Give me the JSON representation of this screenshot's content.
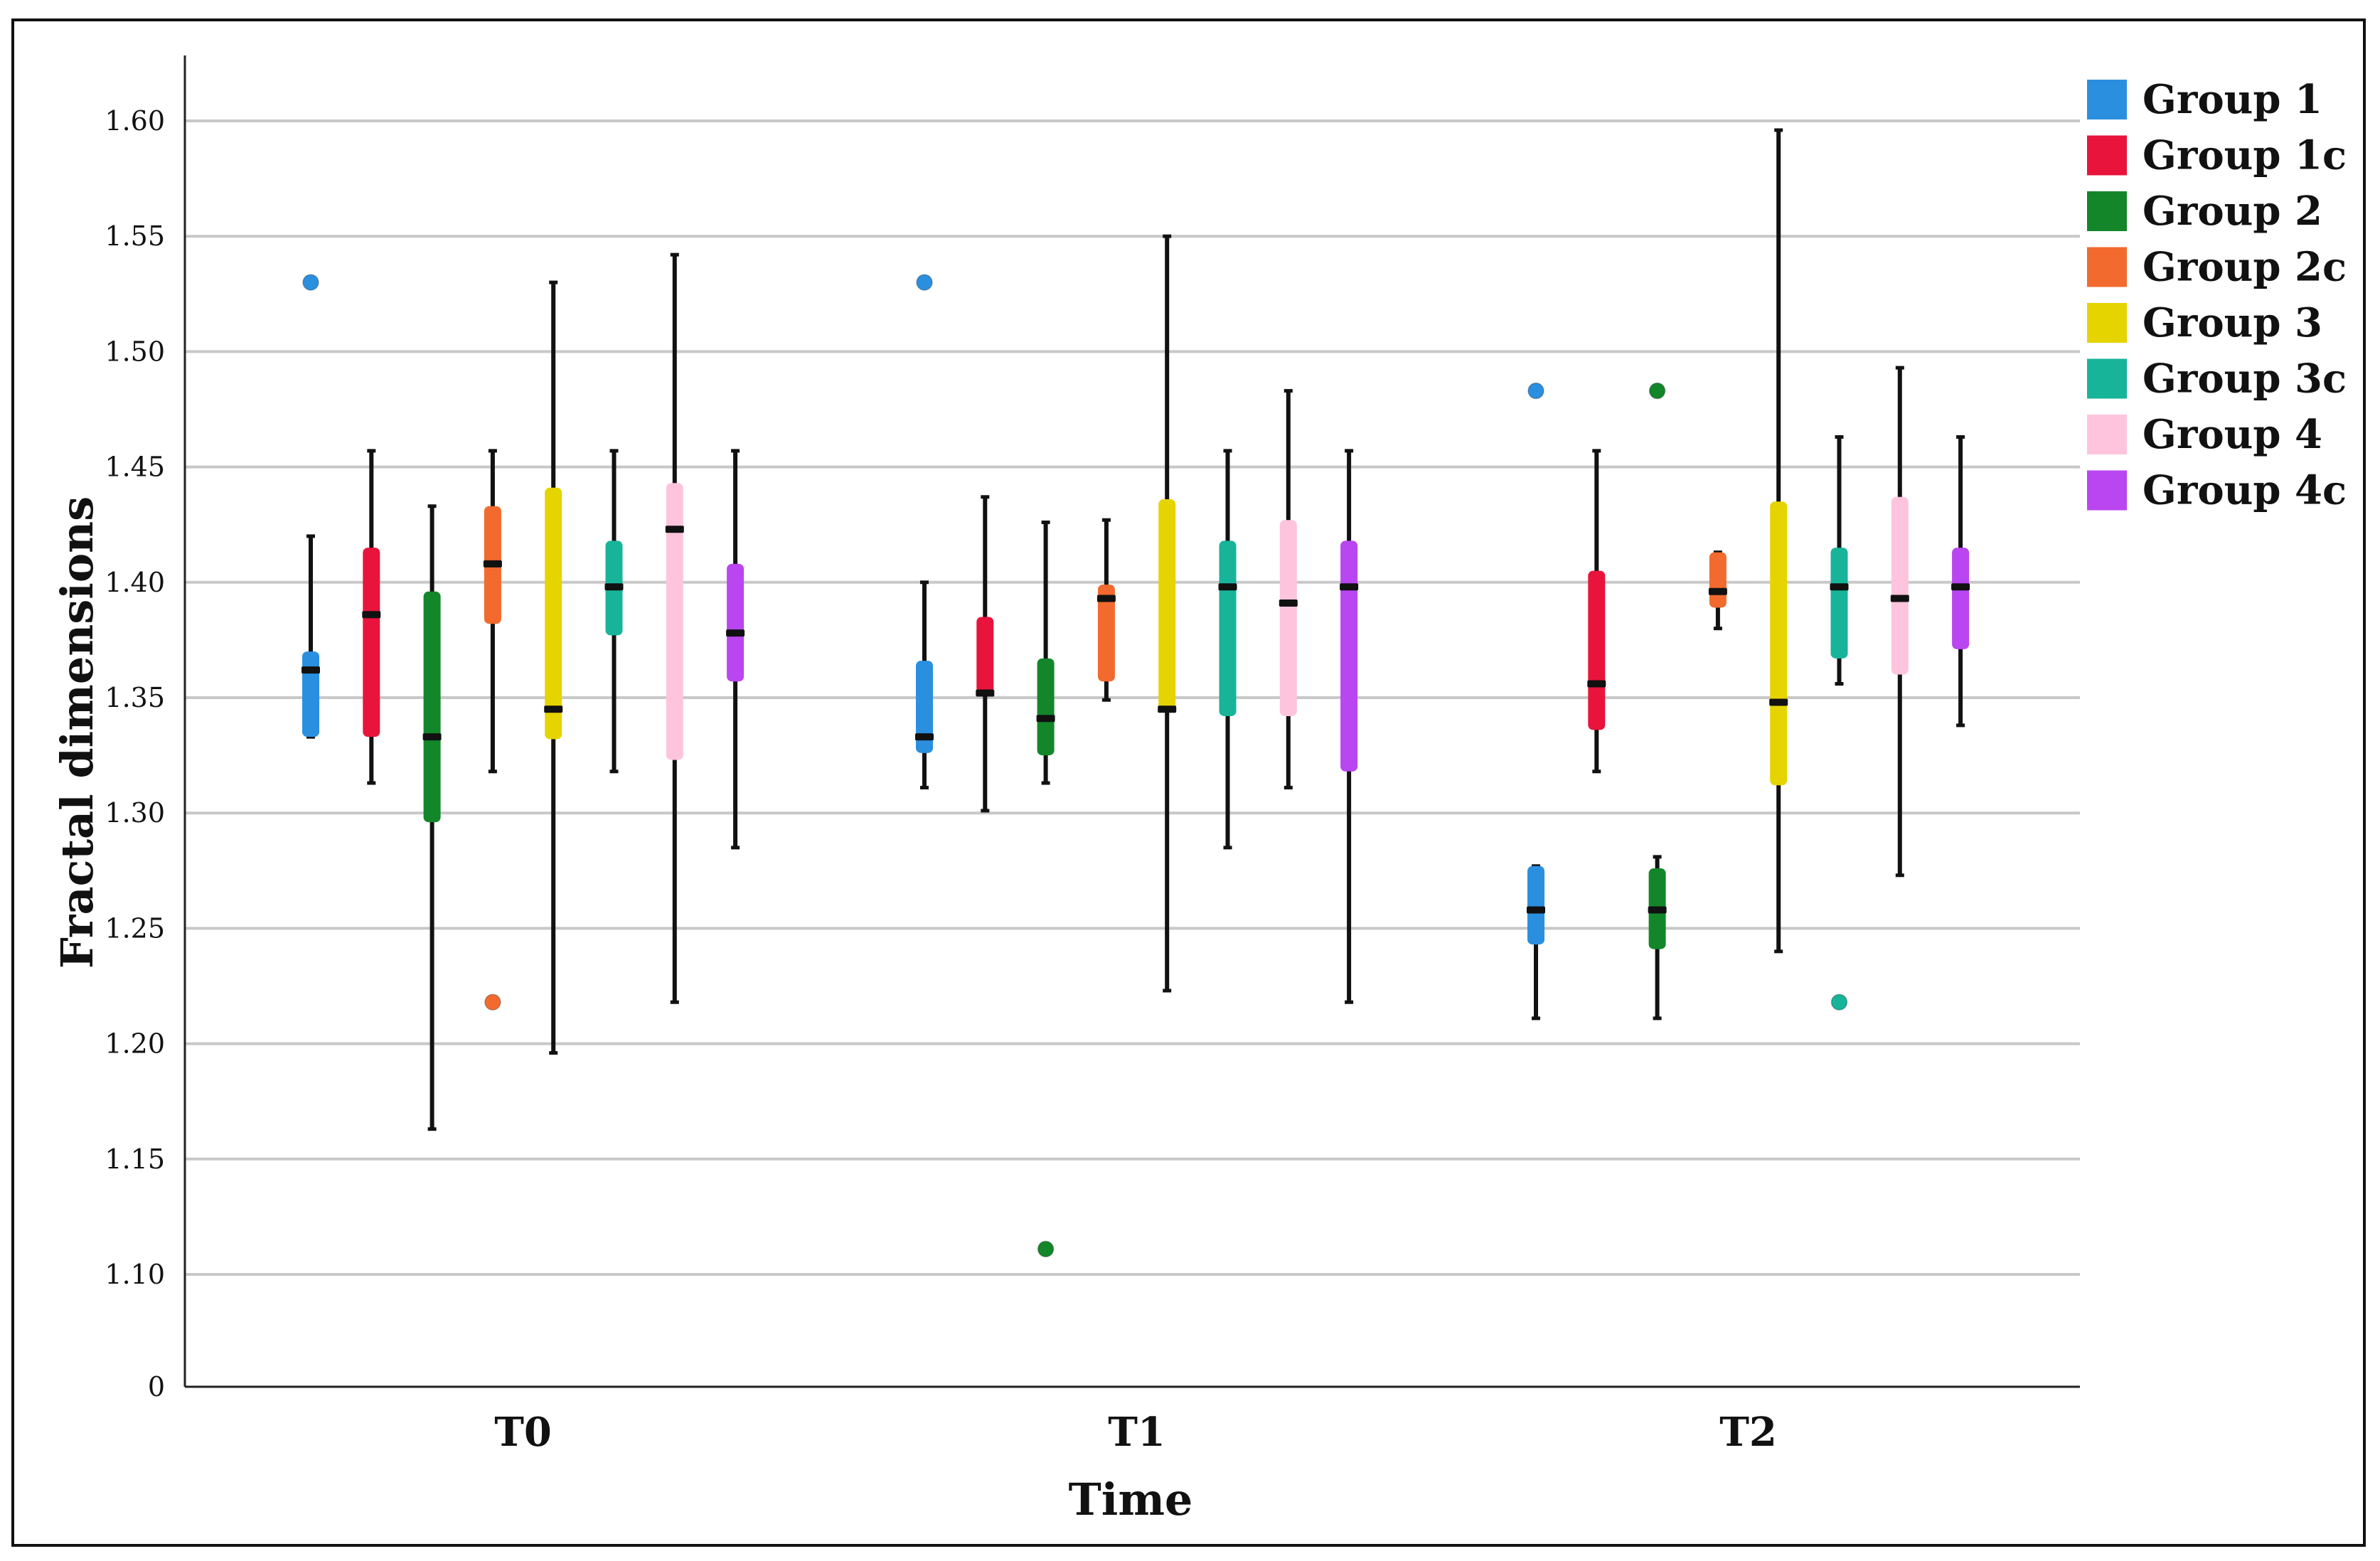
{
  "chart_data": {
    "type": "box",
    "xlabel": "Time",
    "ylabel": "Fractal dimensions",
    "categories": [
      "T0",
      "T1",
      "T2"
    ],
    "yticks": [
      "0",
      "1.10",
      "1.15",
      "1.20",
      "1.25",
      "1.30",
      "1.35",
      "1.40",
      "1.45",
      "1.50",
      "1.55",
      "1.60"
    ],
    "ylim": [
      1.0,
      1.62
    ],
    "axis_break": "0 shown at the axis origin, scale starts near 1.05",
    "grid": true,
    "legend_position": "top-right",
    "series": [
      {
        "name": "Group 1",
        "color": "#2b8fe0",
        "boxes": [
          {
            "min": 1.333,
            "q1": 1.333,
            "median": 1.362,
            "q3": 1.37,
            "max": 1.42,
            "outliers": [
              1.53
            ]
          },
          {
            "min": 1.311,
            "q1": 1.326,
            "median": 1.333,
            "q3": 1.366,
            "max": 1.4,
            "outliers": [
              1.53
            ]
          },
          {
            "min": 1.211,
            "q1": 1.243,
            "median": 1.258,
            "q3": 1.277,
            "max": 1.277,
            "outliers": [
              1.483
            ]
          }
        ]
      },
      {
        "name": "Group 1c",
        "color": "#e8143c",
        "boxes": [
          {
            "min": 1.313,
            "q1": 1.333,
            "median": 1.386,
            "q3": 1.415,
            "max": 1.457,
            "outliers": []
          },
          {
            "min": 1.301,
            "q1": 1.352,
            "median": 1.352,
            "q3": 1.385,
            "max": 1.437,
            "outliers": []
          },
          {
            "min": 1.318,
            "q1": 1.336,
            "median": 1.356,
            "q3": 1.405,
            "max": 1.457,
            "outliers": []
          }
        ]
      },
      {
        "name": "Group 2",
        "color": "#13862a",
        "boxes": [
          {
            "min": 1.163,
            "q1": 1.296,
            "median": 1.333,
            "q3": 1.396,
            "max": 1.433,
            "outliers": []
          },
          {
            "min": 1.313,
            "q1": 1.325,
            "median": 1.341,
            "q3": 1.367,
            "max": 1.426,
            "outliers": [
              1.111
            ]
          },
          {
            "min": 1.211,
            "q1": 1.241,
            "median": 1.258,
            "q3": 1.276,
            "max": 1.281,
            "outliers": [
              1.483
            ]
          }
        ]
      },
      {
        "name": "Group 2c",
        "color": "#f26a2e",
        "boxes": [
          {
            "min": 1.318,
            "q1": 1.382,
            "median": 1.408,
            "q3": 1.433,
            "max": 1.457,
            "outliers": [
              1.218
            ]
          },
          {
            "min": 1.349,
            "q1": 1.357,
            "median": 1.393,
            "q3": 1.399,
            "max": 1.427,
            "outliers": []
          },
          {
            "min": 1.38,
            "q1": 1.389,
            "median": 1.396,
            "q3": 1.413,
            "max": 1.413,
            "outliers": []
          }
        ]
      },
      {
        "name": "Group 3",
        "color": "#e6d400",
        "boxes": [
          {
            "min": 1.196,
            "q1": 1.332,
            "median": 1.345,
            "q3": 1.441,
            "max": 1.53,
            "outliers": []
          },
          {
            "min": 1.223,
            "q1": 1.344,
            "median": 1.345,
            "q3": 1.436,
            "max": 1.55,
            "outliers": []
          },
          {
            "min": 1.24,
            "q1": 1.312,
            "median": 1.348,
            "q3": 1.435,
            "max": 1.596,
            "outliers": []
          }
        ]
      },
      {
        "name": "Group 3c",
        "color": "#17b49a",
        "boxes": [
          {
            "min": 1.318,
            "q1": 1.377,
            "median": 1.398,
            "q3": 1.418,
            "max": 1.457,
            "outliers": []
          },
          {
            "min": 1.285,
            "q1": 1.342,
            "median": 1.398,
            "q3": 1.418,
            "max": 1.457,
            "outliers": []
          },
          {
            "min": 1.356,
            "q1": 1.367,
            "median": 1.398,
            "q3": 1.415,
            "max": 1.463,
            "outliers": [
              1.218
            ]
          }
        ]
      },
      {
        "name": "Group 4",
        "color": "#ffc4dd",
        "boxes": [
          {
            "min": 1.218,
            "q1": 1.323,
            "median": 1.423,
            "q3": 1.443,
            "max": 1.542,
            "outliers": []
          },
          {
            "min": 1.311,
            "q1": 1.342,
            "median": 1.391,
            "q3": 1.427,
            "max": 1.483,
            "outliers": []
          },
          {
            "min": 1.273,
            "q1": 1.36,
            "median": 1.393,
            "q3": 1.437,
            "max": 1.493,
            "outliers": []
          }
        ]
      },
      {
        "name": "Group 4c",
        "color": "#b946f0",
        "boxes": [
          {
            "min": 1.285,
            "q1": 1.357,
            "median": 1.378,
            "q3": 1.408,
            "max": 1.457,
            "outliers": []
          },
          {
            "min": 1.218,
            "q1": 1.318,
            "median": 1.398,
            "q3": 1.418,
            "max": 1.457,
            "outliers": []
          },
          {
            "min": 1.338,
            "q1": 1.371,
            "median": 1.398,
            "q3": 1.415,
            "max": 1.463,
            "outliers": []
          }
        ]
      }
    ]
  }
}
